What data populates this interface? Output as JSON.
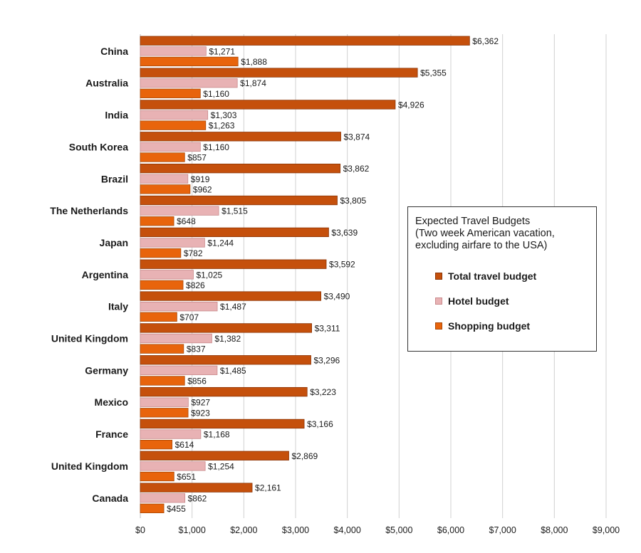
{
  "chart_data": {
    "type": "bar",
    "orientation": "horizontal",
    "categories": [
      "China",
      "Australia",
      "India",
      "South Korea",
      "Brazil",
      "The Netherlands",
      "Japan",
      "Argentina",
      "Italy",
      "United Kingdom",
      "Germany",
      "Mexico",
      "France",
      "United Kingdom",
      "Canada"
    ],
    "series": [
      {
        "name": "Total travel budget",
        "color": "#c5500c",
        "values": [
          6362,
          5355,
          4926,
          3874,
          3862,
          3805,
          3639,
          3592,
          3490,
          3311,
          3296,
          3223,
          3166,
          2869,
          2161
        ],
        "labels": [
          "$6,362",
          "$5,355",
          "$4,926",
          "$3,874",
          "$3,862",
          "$3,805",
          "$3,639",
          "$3,592",
          "$3,490",
          "$3,311",
          "$3,296",
          "$3,223",
          "$3,166",
          "$2,869",
          "$2,161"
        ]
      },
      {
        "name": "Hotel budget",
        "color": "#e8b2b4",
        "values": [
          1271,
          1874,
          1303,
          1160,
          919,
          1515,
          1244,
          1025,
          1487,
          1382,
          1485,
          927,
          1168,
          1254,
          862
        ],
        "labels": [
          "$1,271",
          "$1,874",
          "$1,303",
          "$1,160",
          "$919",
          "$1,515",
          "$1,244",
          "$1,025",
          "$1,487",
          "$1,382",
          "$1,485",
          "$927",
          "$1,168",
          "$1,254",
          "$862"
        ]
      },
      {
        "name": "Shopping budget",
        "color": "#e8640c",
        "values": [
          1888,
          1160,
          1263,
          857,
          962,
          648,
          782,
          826,
          707,
          837,
          856,
          923,
          614,
          651,
          455
        ],
        "labels": [
          "$1,888",
          "$1,160",
          "$1,263",
          "$857",
          "$962",
          "$648",
          "$782",
          "$826",
          "$707",
          "$837",
          "$856",
          "$923",
          "$614",
          "$651",
          "$455"
        ]
      }
    ],
    "x_ticks": [
      "$0",
      "$1,000",
      "$2,000",
      "$3,000",
      "$4,000",
      "$5,000",
      "$6,000",
      "$7,000",
      "$8,000",
      "$9,000"
    ],
    "xlim": [
      0,
      9000
    ],
    "grid": "vertical",
    "legend": {
      "position": "right",
      "title_lines": [
        "Expected Travel Budgets",
        "(Two week American vacation,",
        "excluding airfare to the USA)"
      ]
    }
  }
}
